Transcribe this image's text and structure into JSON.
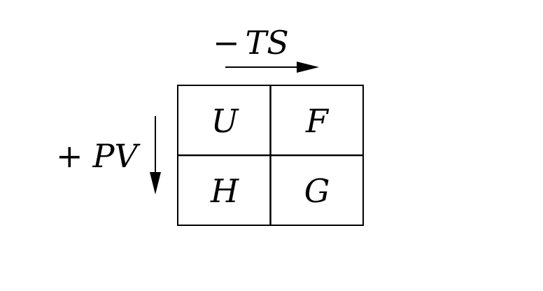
{
  "diagram": {
    "top_label": {
      "operator": "−",
      "variable": "TS"
    },
    "left_label": {
      "operator": "+",
      "variable": "PV"
    },
    "cells": [
      {
        "label": "U"
      },
      {
        "label": "F"
      },
      {
        "label": "H"
      },
      {
        "label": "G"
      }
    ],
    "colors": {
      "stroke": "#000000",
      "background": "#ffffff"
    }
  }
}
